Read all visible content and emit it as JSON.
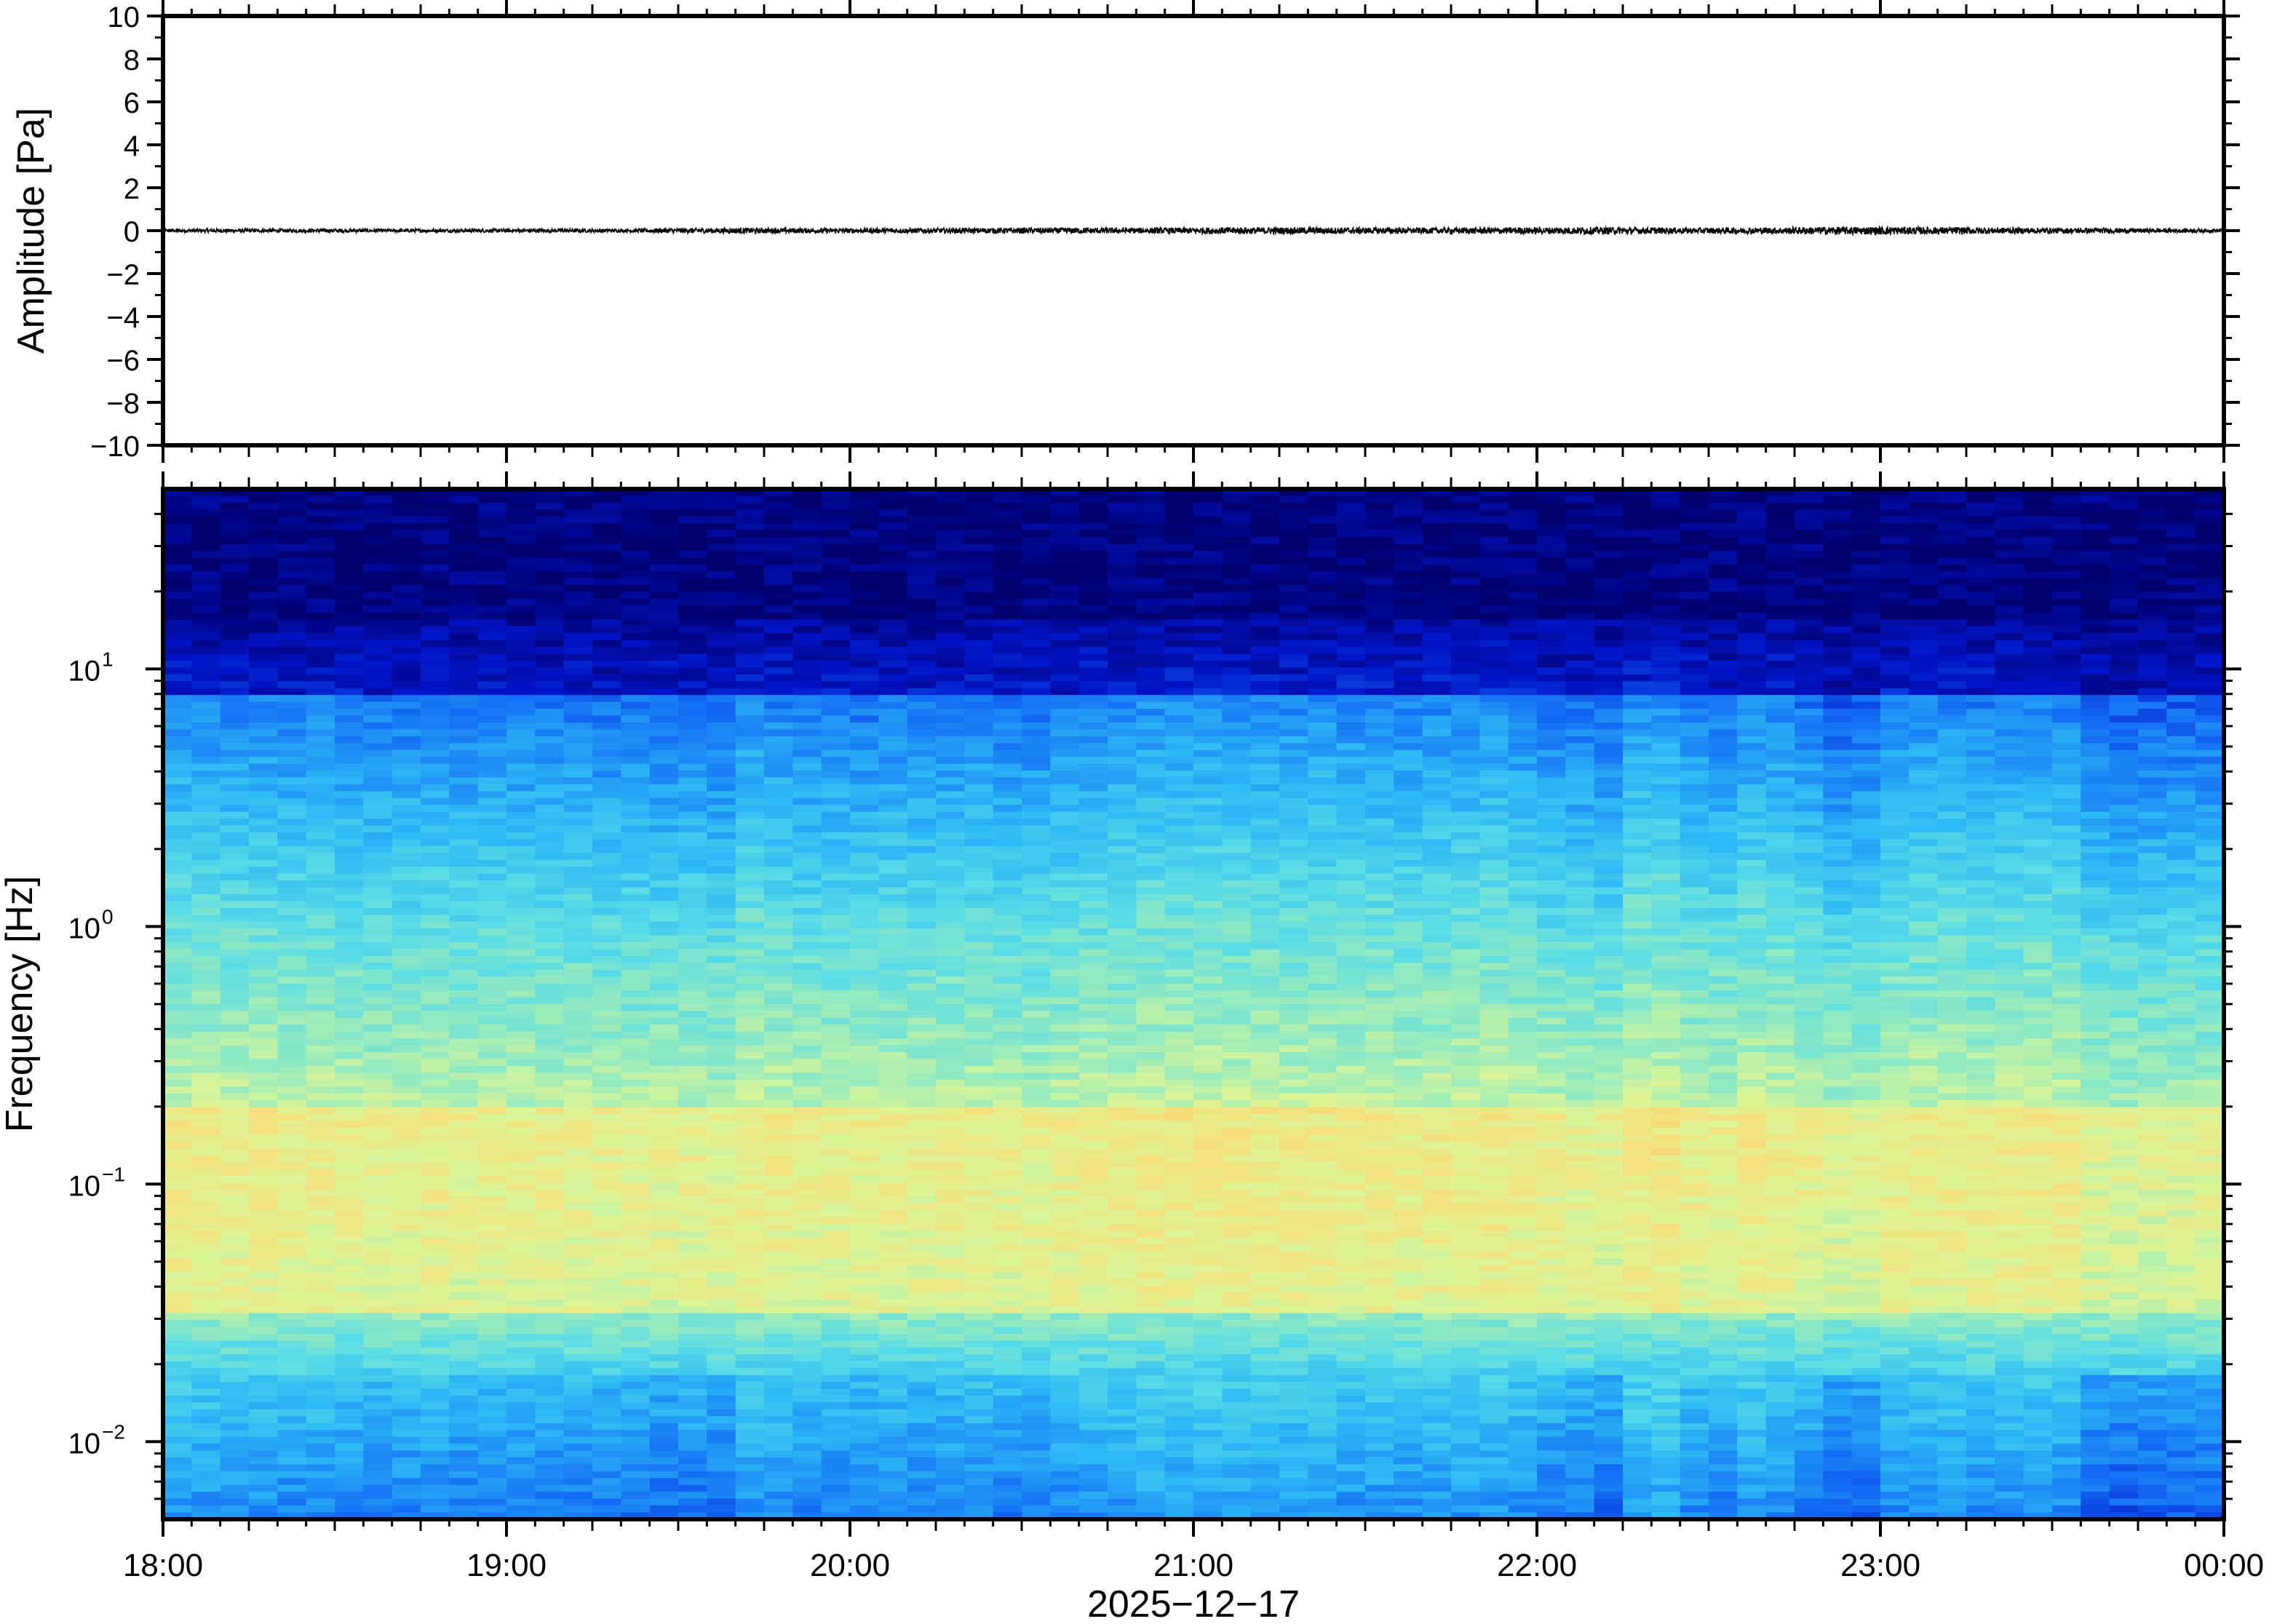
{
  "colors": {
    "trace": "#000000",
    "frame": "#000000",
    "colormap_low": "#000080",
    "colormap_mid": "#55ddee",
    "colormap_high": "#ff9944"
  },
  "chart_data": [
    {
      "type": "line",
      "panel": "waveform",
      "ylabel": "Amplitude [Pa]",
      "ylim": [
        -10,
        10
      ],
      "y_ticks": [
        10,
        8,
        6,
        4,
        2,
        0,
        -2,
        -4,
        -6,
        -8,
        -10
      ],
      "y_tick_labels": [
        "10",
        "8",
        "6",
        "4",
        "2",
        "0",
        "−2",
        "−4",
        "−6",
        "−8",
        "−10"
      ],
      "x_range": [
        "18:00",
        "00:00"
      ],
      "series": [
        {
          "note_values": "trace hovering near zero, amplitude envelope (Pa) sampled every ~10 min",
          "envelope": [
            0.08,
            0.09,
            0.08,
            0.09,
            0.08,
            0.08,
            0.09,
            0.09,
            0.08,
            0.12,
            0.13,
            0.12,
            0.11,
            0.12,
            0.12,
            0.13,
            0.14,
            0.13,
            0.15,
            0.16,
            0.16,
            0.15,
            0.14,
            0.15,
            0.16,
            0.17,
            0.15,
            0.14,
            0.15,
            0.18,
            0.19,
            0.17,
            0.15,
            0.13,
            0.12,
            0.1,
            0.09
          ]
        }
      ],
      "grid": false
    },
    {
      "type": "heatmap",
      "panel": "spectrogram",
      "ylabel": "Frequency [Hz]",
      "y_scale": "log",
      "ylim": [
        0.005,
        50
      ],
      "y_ticks": [
        0.01,
        0.1,
        1,
        10
      ],
      "y_tick_labels": [
        {
          "base": "10",
          "exp": "−2"
        },
        {
          "base": "10",
          "exp": "−1"
        },
        {
          "base": "10",
          "exp": "0"
        },
        {
          "base": "10",
          "exp": "1"
        }
      ],
      "x_ticks": [
        "18:00",
        "19:00",
        "20:00",
        "21:00",
        "22:00",
        "23:00",
        "00:00"
      ],
      "xlabel": "2025−12−17",
      "columns": 72,
      "column_activity": [
        0.55,
        0.52,
        0.5,
        0.5,
        0.45,
        0.48,
        0.44,
        0.4,
        0.42,
        0.46,
        0.4,
        0.42,
        0.4,
        0.38,
        0.4,
        0.36,
        0.35,
        0.32,
        0.34,
        0.3,
        0.55,
        0.48,
        0.4,
        0.42,
        0.38,
        0.44,
        0.4,
        0.42,
        0.45,
        0.4,
        0.38,
        0.44,
        0.5,
        0.55,
        0.6,
        0.58,
        0.62,
        0.6,
        0.58,
        0.55,
        0.58,
        0.52,
        0.54,
        0.5,
        0.52,
        0.55,
        0.58,
        0.5,
        0.4,
        0.35,
        0.3,
        0.62,
        0.65,
        0.45,
        0.4,
        0.55,
        0.5,
        0.4,
        0.2,
        0.25,
        0.48,
        0.5,
        0.52,
        0.48,
        0.5,
        0.52,
        0.48,
        0.22,
        0.18,
        0.2,
        0.22,
        0.25
      ]
    }
  ]
}
